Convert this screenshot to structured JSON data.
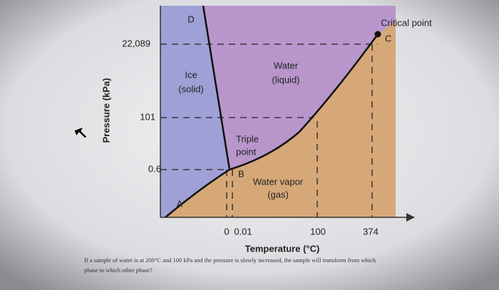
{
  "diagram": {
    "y_axis_label": "Pressure (kPa)",
    "x_axis_label": "Temperature (°C)",
    "y_tick_labels": [
      "22,089",
      "101",
      "0.6"
    ],
    "x_tick_labels": [
      "0",
      "0.01",
      "100",
      "374"
    ],
    "curve_labels": {
      "top": "D",
      "bottom": "A"
    },
    "regions": [
      {
        "lines": [
          "Ice",
          "(solid)"
        ]
      },
      {
        "lines": [
          "Water",
          "(liquid)"
        ]
      },
      {
        "lines": [
          "Water vapor",
          "(gas)"
        ]
      }
    ],
    "triple_point": {
      "lines": [
        "Triple",
        "point"
      ],
      "letter": "B"
    },
    "critical_point": {
      "label": "Critical point",
      "letter": "C"
    }
  },
  "question": [
    "If a sample of water is at 200°C and 100 kPa and the pressure is slowly increased, the sample will transform from which",
    "phase to which other phase?"
  ]
}
